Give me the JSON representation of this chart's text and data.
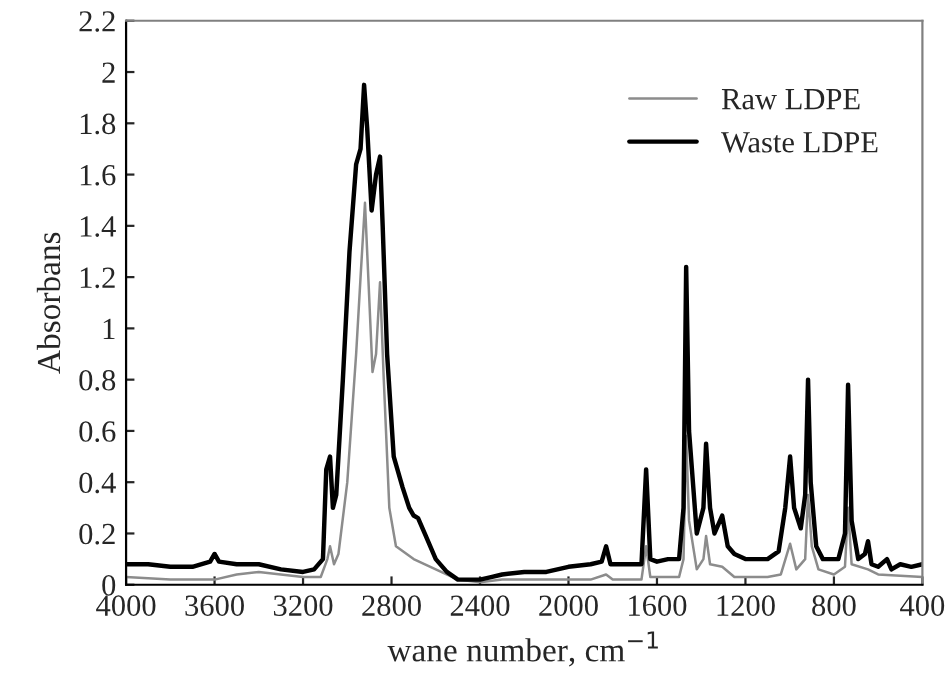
{
  "chart_data": {
    "type": "line",
    "xlabel": "wane number, cm$^{−1}$",
    "ylabel": "Absorbans",
    "xlim": [
      4000,
      400
    ],
    "xticks": [
      4000,
      3600,
      3200,
      2800,
      2400,
      2000,
      1600,
      1200,
      800,
      400
    ],
    "ylim": [
      0,
      2.2
    ],
    "yticks": [
      0,
      0.2,
      0.4,
      0.6,
      0.8,
      1,
      1.2,
      1.4,
      1.6,
      1.8,
      2,
      2.2
    ],
    "grid": false,
    "legend": "top right",
    "marker": "none",
    "line_style": "solid",
    "series": [
      {
        "name": "Raw LDPE",
        "color": "#8c8c8c",
        "x": [
          4000,
          3800,
          3600,
          3500,
          3400,
          3300,
          3200,
          3120,
          3090,
          3078,
          3060,
          3040,
          3000,
          2960,
          2940,
          2920,
          2905,
          2886,
          2870,
          2852,
          2835,
          2810,
          2780,
          2700,
          2600,
          2500,
          2400,
          2300,
          2100,
          1900,
          1830,
          1800,
          1670,
          1649,
          1630,
          1500,
          1480,
          1468,
          1455,
          1420,
          1390,
          1378,
          1360,
          1305,
          1250,
          1100,
          1040,
          998,
          970,
          930,
          917,
          900,
          870,
          800,
          750,
          736,
          720,
          646,
          600,
          400
        ],
        "values": [
          0.03,
          0.02,
          0.02,
          0.04,
          0.05,
          0.04,
          0.03,
          0.03,
          0.1,
          0.15,
          0.08,
          0.12,
          0.4,
          0.9,
          1.2,
          1.49,
          1.2,
          0.83,
          0.9,
          1.18,
          0.8,
          0.3,
          0.15,
          0.1,
          0.06,
          0.02,
          0.01,
          0.02,
          0.02,
          0.02,
          0.04,
          0.02,
          0.02,
          0.15,
          0.03,
          0.03,
          0.1,
          0.58,
          0.25,
          0.06,
          0.1,
          0.19,
          0.08,
          0.07,
          0.03,
          0.03,
          0.04,
          0.16,
          0.06,
          0.1,
          0.35,
          0.15,
          0.06,
          0.04,
          0.07,
          0.3,
          0.08,
          0.06,
          0.04,
          0.03
        ]
      },
      {
        "name": "Waste LDPE",
        "color": "#000000",
        "x": [
          4000,
          3900,
          3800,
          3700,
          3620,
          3600,
          3580,
          3500,
          3400,
          3300,
          3200,
          3150,
          3110,
          3095,
          3078,
          3065,
          3050,
          3020,
          2990,
          2960,
          2940,
          2924,
          2910,
          2890,
          2870,
          2852,
          2840,
          2820,
          2790,
          2750,
          2720,
          2700,
          2680,
          2650,
          2600,
          2550,
          2500,
          2400,
          2350,
          2300,
          2200,
          2100,
          2000,
          1900,
          1850,
          1830,
          1810,
          1700,
          1670,
          1649,
          1630,
          1600,
          1550,
          1500,
          1480,
          1468,
          1455,
          1420,
          1390,
          1378,
          1360,
          1340,
          1305,
          1280,
          1250,
          1200,
          1100,
          1050,
          1020,
          998,
          980,
          950,
          930,
          917,
          905,
          880,
          850,
          780,
          750,
          736,
          720,
          690,
          660,
          646,
          630,
          600,
          560,
          540,
          500,
          450,
          400
        ],
        "values": [
          0.08,
          0.08,
          0.07,
          0.07,
          0.09,
          0.12,
          0.09,
          0.08,
          0.08,
          0.06,
          0.05,
          0.06,
          0.1,
          0.45,
          0.5,
          0.3,
          0.35,
          0.8,
          1.3,
          1.64,
          1.7,
          1.95,
          1.78,
          1.46,
          1.6,
          1.67,
          1.4,
          0.9,
          0.5,
          0.38,
          0.3,
          0.27,
          0.26,
          0.2,
          0.1,
          0.05,
          0.02,
          0.02,
          0.03,
          0.04,
          0.05,
          0.05,
          0.07,
          0.08,
          0.09,
          0.15,
          0.08,
          0.08,
          0.08,
          0.45,
          0.1,
          0.09,
          0.1,
          0.1,
          0.3,
          1.24,
          0.6,
          0.2,
          0.3,
          0.55,
          0.3,
          0.2,
          0.27,
          0.15,
          0.12,
          0.1,
          0.1,
          0.13,
          0.3,
          0.5,
          0.3,
          0.22,
          0.35,
          0.8,
          0.4,
          0.15,
          0.1,
          0.1,
          0.2,
          0.78,
          0.25,
          0.1,
          0.12,
          0.17,
          0.08,
          0.07,
          0.1,
          0.06,
          0.08,
          0.07,
          0.08
        ]
      }
    ]
  }
}
